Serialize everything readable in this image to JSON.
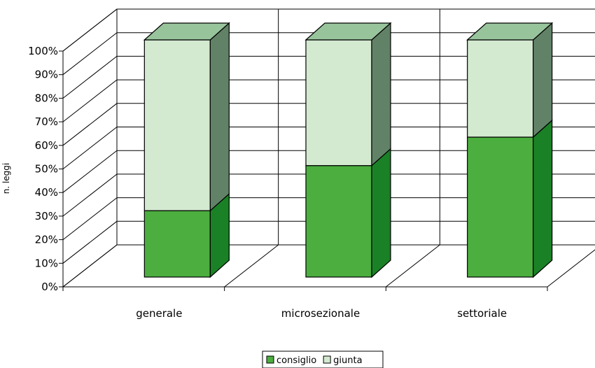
{
  "chart_data": {
    "type": "bar",
    "stacked": true,
    "percent": true,
    "three_d": true,
    "title": "",
    "xlabel": "",
    "ylabel": "n. leggi",
    "ylim": [
      0,
      100
    ],
    "y_ticks": [
      "0%",
      "10%",
      "20%",
      "30%",
      "40%",
      "50%",
      "60%",
      "70%",
      "80%",
      "90%",
      "100%"
    ],
    "categories": [
      "generale",
      "microsezionale",
      "settoriale"
    ],
    "series": [
      {
        "name": "consiglio",
        "values": [
          28,
          47,
          59
        ],
        "color": "#4bae3f",
        "side_color": "#1a8126"
      },
      {
        "name": "giunta",
        "values": [
          72,
          53,
          41
        ],
        "color": "#d3ead0",
        "side_color": "#628267"
      }
    ],
    "top_color": "#98c49c",
    "grid": true,
    "legend_position": "bottom"
  }
}
